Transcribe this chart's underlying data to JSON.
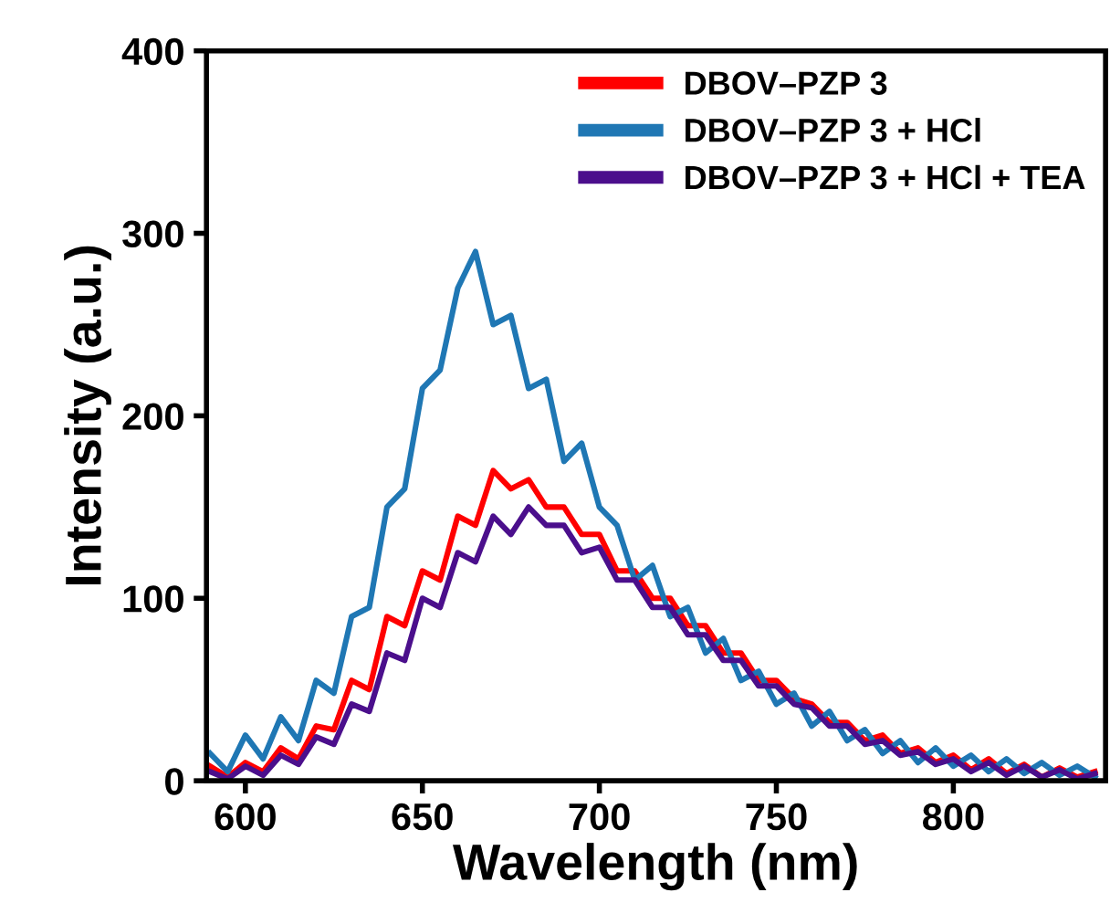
{
  "chart_data": {
    "type": "line",
    "xlabel": "Wavelength (nm)",
    "ylabel": "Intensity (a.u.)",
    "x": [
      590,
      595,
      600,
      605,
      610,
      615,
      620,
      625,
      630,
      635,
      640,
      645,
      650,
      655,
      660,
      665,
      670,
      675,
      680,
      685,
      690,
      695,
      700,
      705,
      710,
      715,
      720,
      725,
      730,
      735,
      740,
      745,
      750,
      755,
      760,
      765,
      770,
      775,
      780,
      785,
      790,
      795,
      800,
      805,
      810,
      815,
      820,
      825,
      830,
      835,
      840
    ],
    "series": [
      {
        "name": "DBOV–PZP 3",
        "color": "#ff0000",
        "values": [
          8,
          2,
          10,
          5,
          18,
          12,
          30,
          28,
          55,
          50,
          90,
          85,
          115,
          110,
          145,
          140,
          170,
          160,
          165,
          150,
          150,
          135,
          135,
          115,
          115,
          100,
          100,
          85,
          85,
          70,
          70,
          55,
          55,
          45,
          42,
          32,
          32,
          22,
          25,
          15,
          18,
          10,
          14,
          6,
          12,
          4,
          9,
          2,
          7,
          2,
          5
        ]
      },
      {
        "name": "DBOV–PZP 3 + HCl",
        "color": "#1f77b4",
        "values": [
          15,
          5,
          25,
          12,
          35,
          22,
          55,
          48,
          90,
          95,
          150,
          160,
          215,
          225,
          270,
          290,
          250,
          255,
          215,
          220,
          175,
          185,
          150,
          140,
          110,
          118,
          90,
          95,
          70,
          78,
          55,
          60,
          42,
          48,
          30,
          38,
          22,
          28,
          15,
          22,
          10,
          18,
          8,
          14,
          5,
          12,
          4,
          10,
          3,
          8,
          2
        ]
      },
      {
        "name": "DBOV–PZP 3 + HCl + TEA",
        "color": "#4b0f8c",
        "values": [
          5,
          1,
          8,
          3,
          14,
          9,
          24,
          20,
          42,
          38,
          70,
          66,
          100,
          95,
          125,
          120,
          145,
          135,
          150,
          140,
          140,
          125,
          128,
          110,
          110,
          95,
          95,
          80,
          80,
          66,
          66,
          52,
          52,
          42,
          40,
          30,
          30,
          20,
          22,
          14,
          16,
          9,
          12,
          5,
          10,
          3,
          8,
          2,
          6,
          1,
          4
        ]
      }
    ],
    "xlim": [
      589,
      843
    ],
    "xticks": [
      600,
      650,
      700,
      750,
      800
    ],
    "ylim": [
      0,
      400
    ],
    "yticks": [
      0,
      100,
      200,
      300,
      400
    ],
    "legend": "top right",
    "grid": false,
    "marker": "none",
    "line_style": "solid"
  }
}
